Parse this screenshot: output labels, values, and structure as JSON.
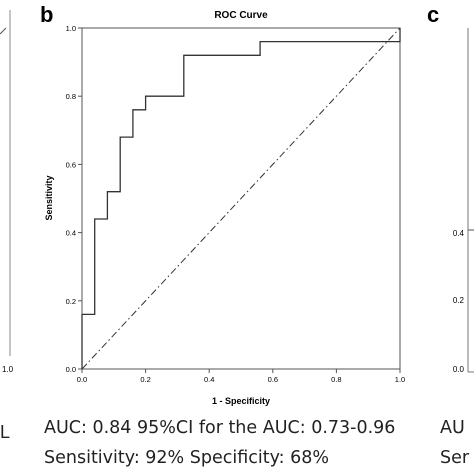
{
  "panels": {
    "left": {
      "tick_label": "1.0",
      "axis_tail": "L"
    },
    "center": {
      "label": "b"
    },
    "right": {
      "label": "c",
      "tick_labels": [
        "0.4",
        "0.2",
        "0.0"
      ],
      "caption_start": "AU",
      "caption_start_2": "Ser"
    }
  },
  "chart_data": {
    "type": "line",
    "title": "ROC Curve",
    "xlabel": "1 - Specificity",
    "ylabel": "Sensitivity",
    "xlim": [
      0,
      1
    ],
    "ylim": [
      0,
      1
    ],
    "xticks": [
      "0.0",
      "0.2",
      "0.4",
      "0.6",
      "0.8",
      "1.0"
    ],
    "yticks": [
      "0.0",
      "0.2",
      "0.4",
      "0.6",
      "0.8",
      "1.0"
    ],
    "grid": false,
    "series": [
      {
        "style": "solid",
        "x": [
          0,
          0,
          0.04,
          0.04,
          0.08,
          0.08,
          0.12,
          0.12,
          0.16,
          0.16,
          0.2,
          0.2,
          0.32,
          0.32,
          0.56,
          0.56,
          1.0,
          1.0
        ],
        "y": [
          0,
          0.16,
          0.16,
          0.44,
          0.44,
          0.52,
          0.52,
          0.68,
          0.68,
          0.76,
          0.76,
          0.8,
          0.8,
          0.92,
          0.92,
          0.96,
          0.96,
          1.0
        ]
      },
      {
        "style": "dash-dot",
        "x": [
          0,
          1
        ],
        "y": [
          0,
          1
        ]
      }
    ]
  },
  "caption": {
    "line1": "AUC:  0.84  95%CI for the AUC: 0.73-0.96",
    "line2": "Sensitivity:  92%  Specificity: 68%"
  },
  "colors": {
    "line": "#333333",
    "diagonal": "#333333",
    "frame": "#555555"
  }
}
